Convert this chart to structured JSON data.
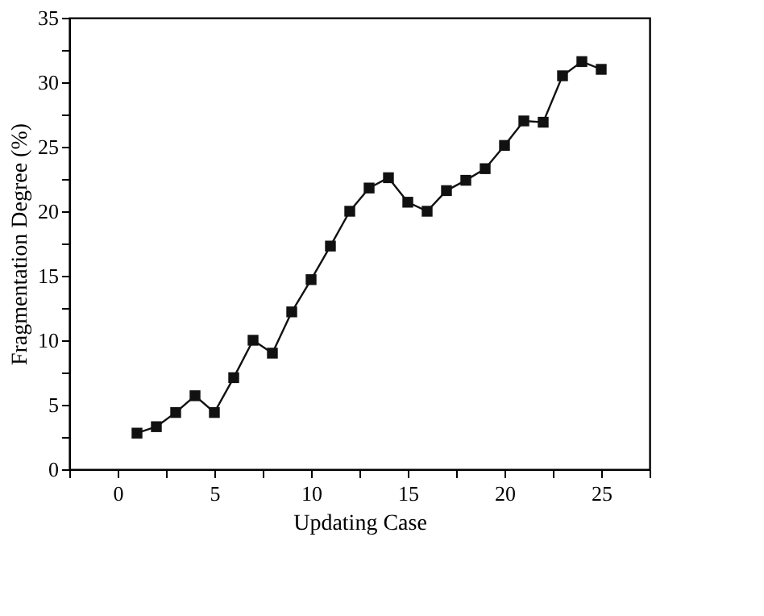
{
  "chart_data": {
    "type": "line",
    "xlabel": "Updating Case",
    "ylabel": "Fragmentation Degree (%)",
    "x": [
      1,
      2,
      3,
      4,
      5,
      6,
      7,
      8,
      9,
      10,
      11,
      12,
      13,
      14,
      15,
      16,
      17,
      18,
      19,
      20,
      21,
      22,
      23,
      24,
      25
    ],
    "series": [
      {
        "color": "#111111",
        "values": [
          2.8,
          3.3,
          4.4,
          5.7,
          4.4,
          7.1,
          10.0,
          9.0,
          12.2,
          14.7,
          17.3,
          20.0,
          21.8,
          22.6,
          20.7,
          20.0,
          21.6,
          22.4,
          23.3,
          25.1,
          27.0,
          26.9,
          30.5,
          31.6,
          31.0
        ]
      }
    ],
    "xlim": [
      -2.5,
      27.5
    ],
    "xticks": [
      {
        "value": -2.5,
        "label": null
      },
      0,
      {
        "value": 2.5,
        "label": null
      },
      5,
      {
        "value": 7.5,
        "label": null
      },
      10,
      {
        "value": 12.5,
        "label": null
      },
      15,
      {
        "value": 17.5,
        "label": null
      },
      20,
      {
        "value": 22.5,
        "label": null
      },
      25,
      {
        "value": 27.5,
        "label": null
      }
    ],
    "ylim": [
      0,
      35
    ],
    "yticks": [
      0,
      {
        "value": 2.5,
        "label": null
      },
      5,
      {
        "value": 7.5,
        "label": null
      },
      10,
      {
        "value": 12.5,
        "label": null
      },
      15,
      {
        "value": 17.5,
        "label": null
      },
      20,
      {
        "value": 22.5,
        "label": null
      },
      25,
      {
        "value": 27.5,
        "label": null
      },
      30,
      {
        "value": 32.5,
        "label": null
      },
      35
    ],
    "grid": false,
    "legend": false,
    "marker": "square",
    "line_style": "solid"
  }
}
